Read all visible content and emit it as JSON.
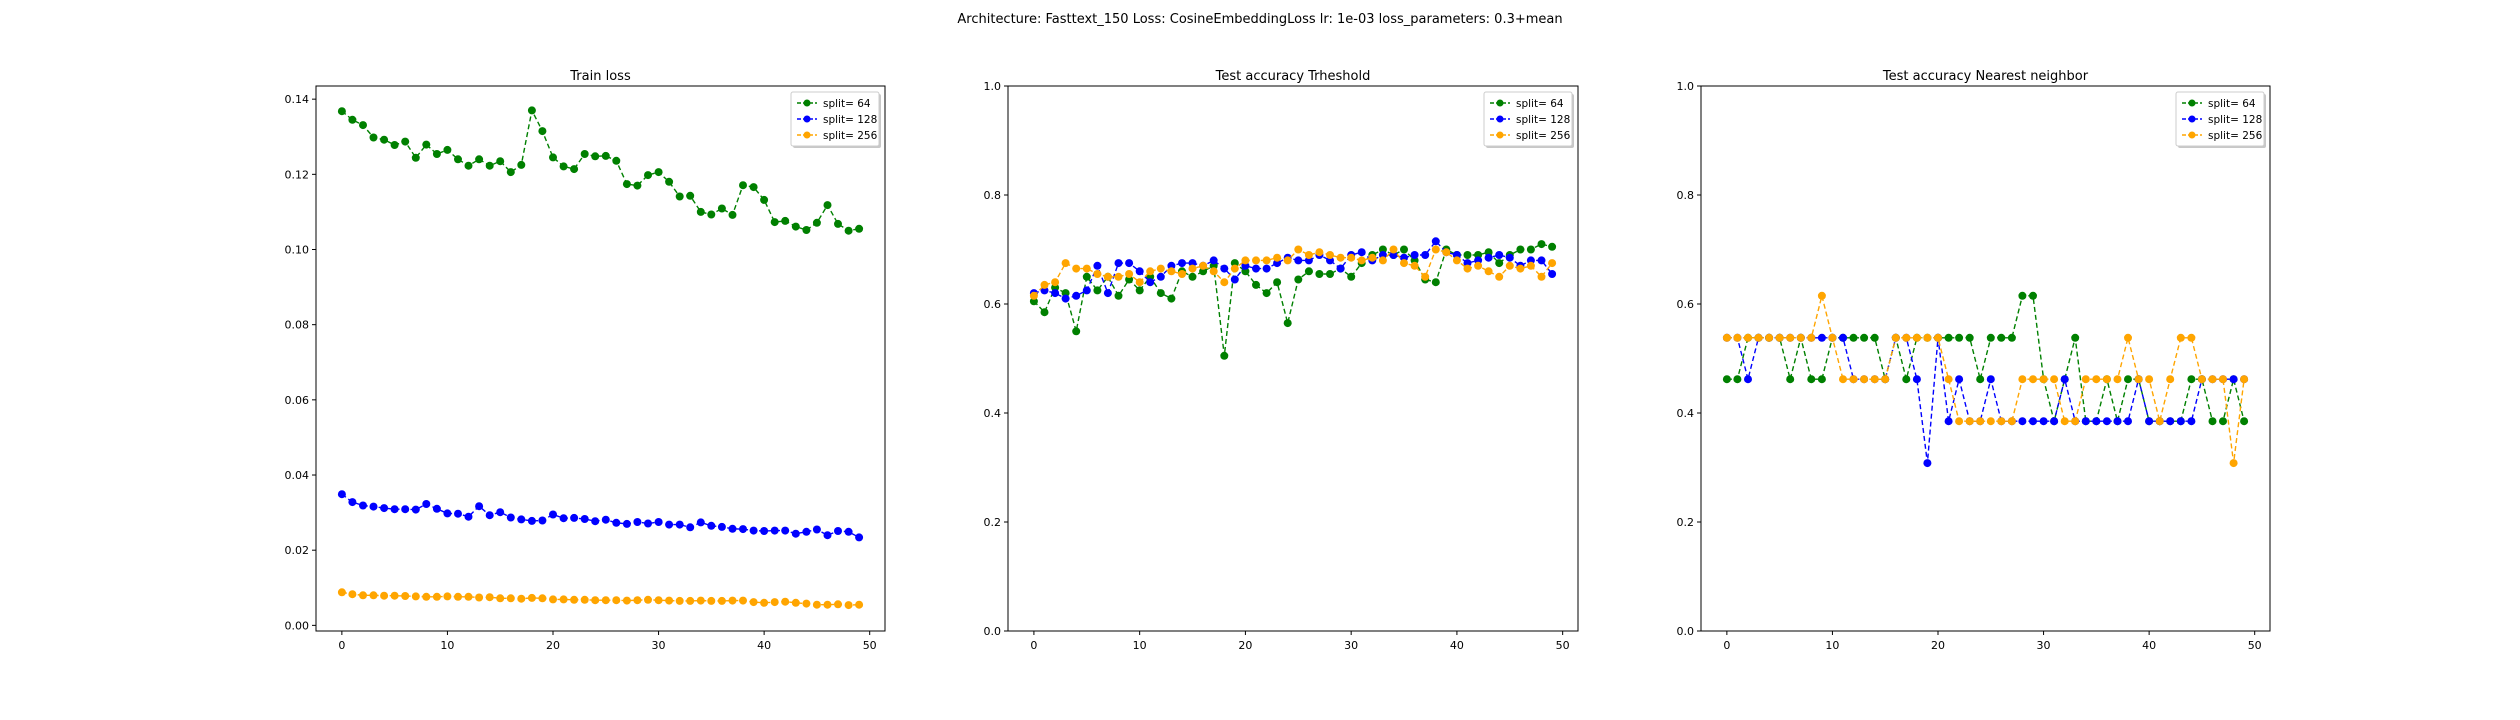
{
  "figure": {
    "suptitle": "Architecture: Fasttext_150 Loss: CosineEmbeddingLoss lr: 1e-03 loss_parameters: 0.3+mean"
  },
  "chart_data": [
    {
      "type": "line",
      "title": "Train loss",
      "xlabel": "",
      "ylabel": "",
      "x": [
        0,
        1,
        2,
        3,
        4,
        5,
        6,
        7,
        8,
        9,
        10,
        11,
        12,
        13,
        14,
        15,
        16,
        17,
        18,
        19,
        20,
        21,
        22,
        23,
        24,
        25,
        26,
        27,
        28,
        29,
        30,
        31,
        32,
        33,
        34,
        35,
        36,
        37,
        38,
        39,
        40,
        41,
        42,
        43,
        44,
        45,
        46,
        47,
        48,
        49
      ],
      "xlim": [
        -2.45,
        51.45
      ],
      "ylim": [
        -0.0015,
        0.1435
      ],
      "xticks": [
        0,
        10,
        20,
        30,
        40,
        50
      ],
      "yticks": [
        0.0,
        0.02,
        0.04,
        0.06,
        0.08,
        0.1,
        0.12,
        0.14
      ],
      "ytick_labels": [
        "0.00",
        "0.02",
        "0.04",
        "0.06",
        "0.08",
        "0.10",
        "0.12",
        "0.14"
      ],
      "grid": false,
      "legend_position": "top-right",
      "series": [
        {
          "name": "split= 64",
          "color": "#008000",
          "values": [
            0.1368,
            0.1345,
            0.1331,
            0.1298,
            0.1292,
            0.1278,
            0.1287,
            0.1244,
            0.1279,
            0.1254,
            0.1265,
            0.124,
            0.1223,
            0.124,
            0.1223,
            0.1235,
            0.1206,
            0.1225,
            0.137,
            0.1315,
            0.1245,
            0.1221,
            0.1214,
            0.1254,
            0.1248,
            0.1249,
            0.1236,
            0.1174,
            0.117,
            0.1198,
            0.1206,
            0.118,
            0.1141,
            0.1143,
            0.11,
            0.1093,
            0.1109,
            0.1092,
            0.1171,
            0.1166,
            0.1132,
            0.1073,
            0.1076,
            0.1061,
            0.1052,
            0.1071,
            0.1118,
            0.1068,
            0.105,
            0.1055
          ]
        },
        {
          "name": "split= 128",
          "color": "#0000ff",
          "values": [
            0.0349,
            0.0328,
            0.0319,
            0.0316,
            0.0312,
            0.0309,
            0.0309,
            0.0308,
            0.0323,
            0.031,
            0.0298,
            0.0297,
            0.0289,
            0.0317,
            0.0293,
            0.0301,
            0.0287,
            0.0282,
            0.0278,
            0.0279,
            0.0295,
            0.0285,
            0.0286,
            0.0283,
            0.0277,
            0.0281,
            0.0273,
            0.027,
            0.0275,
            0.0271,
            0.0275,
            0.0268,
            0.0268,
            0.0261,
            0.0274,
            0.0265,
            0.0262,
            0.0257,
            0.0256,
            0.0252,
            0.0251,
            0.0252,
            0.0252,
            0.0244,
            0.0249,
            0.0255,
            0.024,
            0.0251,
            0.0249,
            0.0234
          ]
        },
        {
          "name": "split= 256",
          "color": "#ffa500",
          "values": [
            0.0088,
            0.0083,
            0.008,
            0.008,
            0.0079,
            0.0079,
            0.0078,
            0.0077,
            0.0076,
            0.0076,
            0.0077,
            0.0076,
            0.0076,
            0.0074,
            0.0075,
            0.0072,
            0.0072,
            0.0071,
            0.0073,
            0.0072,
            0.0069,
            0.0069,
            0.0068,
            0.0068,
            0.0067,
            0.0067,
            0.0067,
            0.0066,
            0.0067,
            0.0068,
            0.0067,
            0.0066,
            0.0065,
            0.0065,
            0.0066,
            0.0065,
            0.0065,
            0.0066,
            0.0066,
            0.0062,
            0.006,
            0.0062,
            0.0063,
            0.006,
            0.0058,
            0.0055,
            0.0055,
            0.0056,
            0.0054,
            0.0055
          ]
        }
      ]
    },
    {
      "type": "line",
      "title": "Test accuracy Trheshold",
      "xlabel": "",
      "ylabel": "",
      "x": [
        0,
        1,
        2,
        3,
        4,
        5,
        6,
        7,
        8,
        9,
        10,
        11,
        12,
        13,
        14,
        15,
        16,
        17,
        18,
        19,
        20,
        21,
        22,
        23,
        24,
        25,
        26,
        27,
        28,
        29,
        30,
        31,
        32,
        33,
        34,
        35,
        36,
        37,
        38,
        39,
        40,
        41,
        42,
        43,
        44,
        45,
        46,
        47,
        48,
        49
      ],
      "xlim": [
        -2.45,
        51.45
      ],
      "ylim": [
        0.0,
        1.0
      ],
      "xticks": [
        0,
        10,
        20,
        30,
        40,
        50
      ],
      "yticks": [
        0.0,
        0.2,
        0.4,
        0.6,
        0.8,
        1.0
      ],
      "ytick_labels": [
        "0.0",
        "0.2",
        "0.4",
        "0.6",
        "0.8",
        "1.0"
      ],
      "grid": false,
      "legend_position": "top-right",
      "series": [
        {
          "name": "split= 64",
          "color": "#008000",
          "values": [
            0.605,
            0.585,
            0.63,
            0.62,
            0.55,
            0.65,
            0.625,
            0.65,
            0.615,
            0.645,
            0.625,
            0.65,
            0.62,
            0.61,
            0.66,
            0.65,
            0.66,
            0.67,
            0.505,
            0.675,
            0.66,
            0.635,
            0.62,
            0.64,
            0.565,
            0.645,
            0.66,
            0.655,
            0.655,
            0.665,
            0.65,
            0.675,
            0.69,
            0.7,
            0.69,
            0.7,
            0.68,
            0.645,
            0.64,
            0.7,
            0.69,
            0.69,
            0.69,
            0.695,
            0.675,
            0.69,
            0.7,
            0.7,
            0.71,
            0.705
          ]
        },
        {
          "name": "split= 128",
          "color": "#0000ff",
          "values": [
            0.62,
            0.625,
            0.62,
            0.61,
            0.615,
            0.625,
            0.67,
            0.62,
            0.675,
            0.675,
            0.66,
            0.64,
            0.65,
            0.67,
            0.675,
            0.675,
            0.67,
            0.68,
            0.665,
            0.645,
            0.67,
            0.665,
            0.665,
            0.675,
            0.685,
            0.68,
            0.68,
            0.69,
            0.68,
            0.665,
            0.69,
            0.695,
            0.68,
            0.69,
            0.69,
            0.685,
            0.69,
            0.69,
            0.715,
            0.695,
            0.69,
            0.675,
            0.68,
            0.685,
            0.69,
            0.685,
            0.67,
            0.68,
            0.68,
            0.655
          ]
        },
        {
          "name": "split= 256",
          "color": "#ffa500",
          "values": [
            0.615,
            0.635,
            0.64,
            0.675,
            0.665,
            0.665,
            0.655,
            0.65,
            0.65,
            0.655,
            0.64,
            0.66,
            0.665,
            0.66,
            0.655,
            0.665,
            0.67,
            0.66,
            0.64,
            0.665,
            0.68,
            0.68,
            0.68,
            0.685,
            0.68,
            0.7,
            0.69,
            0.695,
            0.69,
            0.685,
            0.685,
            0.68,
            0.685,
            0.68,
            0.7,
            0.675,
            0.67,
            0.65,
            0.7,
            0.695,
            0.68,
            0.665,
            0.67,
            0.66,
            0.65,
            0.67,
            0.665,
            0.67,
            0.65,
            0.675
          ]
        }
      ]
    },
    {
      "type": "line",
      "title": "Test accuracy Nearest neighbor",
      "xlabel": "",
      "ylabel": "",
      "x": [
        0,
        1,
        2,
        3,
        4,
        5,
        6,
        7,
        8,
        9,
        10,
        11,
        12,
        13,
        14,
        15,
        16,
        17,
        18,
        19,
        20,
        21,
        22,
        23,
        24,
        25,
        26,
        27,
        28,
        29,
        30,
        31,
        32,
        33,
        34,
        35,
        36,
        37,
        38,
        39,
        40,
        41,
        42,
        43,
        44,
        45,
        46,
        47,
        48,
        49
      ],
      "xlim": [
        -2.45,
        51.45
      ],
      "ylim": [
        0.0,
        1.0
      ],
      "xticks": [
        0,
        10,
        20,
        30,
        40,
        50
      ],
      "yticks": [
        0.0,
        0.2,
        0.4,
        0.6,
        0.8,
        1.0
      ],
      "ytick_labels": [
        "0.0",
        "0.2",
        "0.4",
        "0.6",
        "0.8",
        "1.0"
      ],
      "grid": false,
      "legend_position": "top-right",
      "series": [
        {
          "name": "split= 64",
          "color": "#008000",
          "values": [
            0.462,
            0.462,
            0.538,
            0.538,
            0.538,
            0.538,
            0.462,
            0.538,
            0.462,
            0.462,
            0.538,
            0.538,
            0.538,
            0.538,
            0.538,
            0.462,
            0.538,
            0.462,
            0.538,
            0.538,
            0.538,
            0.538,
            0.538,
            0.538,
            0.462,
            0.538,
            0.538,
            0.538,
            0.615,
            0.615,
            0.462,
            0.385,
            0.462,
            0.538,
            0.385,
            0.385,
            0.462,
            0.385,
            0.462,
            0.462,
            0.385,
            0.385,
            0.385,
            0.385,
            0.462,
            0.462,
            0.385,
            0.385,
            0.462,
            0.385
          ]
        },
        {
          "name": "split= 128",
          "color": "#0000ff",
          "values": [
            0.538,
            0.538,
            0.462,
            0.538,
            0.538,
            0.538,
            0.538,
            0.538,
            0.538,
            0.538,
            0.538,
            0.538,
            0.462,
            0.462,
            0.462,
            0.462,
            0.538,
            0.538,
            0.462,
            0.308,
            0.538,
            0.385,
            0.462,
            0.385,
            0.385,
            0.462,
            0.385,
            0.385,
            0.385,
            0.385,
            0.385,
            0.385,
            0.462,
            0.385,
            0.385,
            0.385,
            0.385,
            0.385,
            0.385,
            0.462,
            0.385,
            0.385,
            0.385,
            0.385,
            0.385,
            0.462,
            0.462,
            0.462,
            0.462,
            0.462
          ]
        },
        {
          "name": "split= 256",
          "color": "#ffa500",
          "values": [
            0.538,
            0.538,
            0.538,
            0.538,
            0.538,
            0.538,
            0.538,
            0.538,
            0.538,
            0.615,
            0.538,
            0.462,
            0.462,
            0.462,
            0.462,
            0.462,
            0.538,
            0.538,
            0.538,
            0.538,
            0.538,
            0.462,
            0.385,
            0.385,
            0.385,
            0.385,
            0.385,
            0.385,
            0.462,
            0.462,
            0.462,
            0.462,
            0.385,
            0.385,
            0.462,
            0.462,
            0.462,
            0.462,
            0.538,
            0.462,
            0.462,
            0.385,
            0.462,
            0.538,
            0.538,
            0.462,
            0.462,
            0.462,
            0.308,
            0.462
          ]
        }
      ]
    }
  ]
}
